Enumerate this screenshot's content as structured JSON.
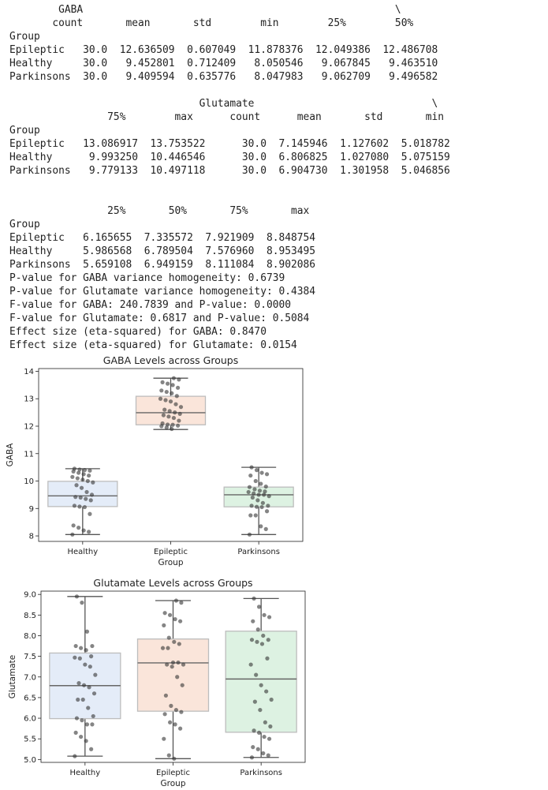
{
  "console": {
    "lines": [
      "        GABA                                                   \\",
      "       count       mean       std        min        25%        50%",
      "Group",
      "Epileptic   30.0  12.636509  0.607049  11.878376  12.049386  12.486708",
      "Healthy     30.0   9.452801  0.712409   8.050546   9.067845   9.463510",
      "Parkinsons  30.0   9.409594  0.635776   8.047983   9.062709   9.496582",
      "",
      "                               Glutamate                             \\",
      "                75%        max      count      mean       std       min",
      "Group",
      "Epileptic   13.086917  13.753522      30.0  7.145946  1.127602  5.018782",
      "Healthy      9.993250  10.446546      30.0  6.806825  1.027080  5.075159",
      "Parkinsons   9.779133  10.497118      30.0  6.904730  1.301958  5.046856",
      "",
      "",
      "                25%       50%       75%       max",
      "Group",
      "Epileptic   6.165655  7.335572  7.921909  8.848754",
      "Healthy     5.986568  6.789504  7.576960  8.953495",
      "Parkinsons  5.659108  6.949159  8.111084  8.902086",
      "P-value for GABA variance homogeneity: 0.6739",
      "P-value for Glutamate variance homogeneity: 0.4384",
      "F-value for GABA: 240.7839 and P-value: 0.0000",
      "F-value for Glutamate: 0.6817 and P-value: 0.5084",
      "Effect size (eta-squared) for GABA: 0.8470",
      "Effect size (eta-squared) for Glutamate: 0.0154"
    ]
  },
  "chart_data": [
    {
      "type": "box",
      "title": "GABA Levels across Groups",
      "xlabel": "Group",
      "ylabel": "GABA",
      "ylim": [
        7.8,
        14.1
      ],
      "yticks": [
        8,
        9,
        10,
        11,
        12,
        13,
        14
      ],
      "categories": [
        "Healthy",
        "Epileptic",
        "Parkinsons"
      ],
      "box_colors": [
        "#e4ecf8",
        "#fae5da",
        "#ddf2e2"
      ],
      "box_edge_color": "#bdbdbd",
      "point_color": "#333333",
      "boxes": [
        {
          "group": "Healthy",
          "min": 8.05,
          "q1": 9.07,
          "median": 9.46,
          "q3": 9.99,
          "max": 10.45
        },
        {
          "group": "Epileptic",
          "min": 11.88,
          "q1": 12.05,
          "median": 12.49,
          "q3": 13.09,
          "max": 13.75
        },
        {
          "group": "Parkinsons",
          "min": 8.05,
          "q1": 9.06,
          "median": 9.5,
          "q3": 9.78,
          "max": 10.5
        }
      ],
      "points": [
        [
          8.05,
          8.15,
          8.2,
          8.3,
          8.38,
          8.8,
          9.05,
          9.07,
          9.1,
          9.3,
          9.35,
          9.4,
          9.42,
          9.5,
          9.6,
          9.75,
          9.85,
          9.95,
          10.0,
          10.05,
          10.1,
          10.15,
          10.2,
          10.25,
          10.3,
          10.35,
          10.38,
          10.4,
          10.42,
          10.45
        ],
        [
          11.9,
          11.95,
          12.0,
          12.02,
          12.05,
          12.06,
          12.1,
          12.2,
          12.3,
          12.35,
          12.4,
          12.45,
          12.5,
          12.55,
          12.6,
          12.7,
          12.8,
          12.9,
          12.95,
          13.0,
          13.1,
          13.2,
          13.25,
          13.3,
          13.4,
          13.5,
          13.55,
          13.6,
          13.7,
          13.75
        ],
        [
          8.05,
          8.25,
          8.35,
          8.75,
          8.75,
          8.9,
          9.05,
          9.06,
          9.1,
          9.1,
          9.2,
          9.3,
          9.4,
          9.45,
          9.5,
          9.5,
          9.55,
          9.6,
          9.62,
          9.65,
          9.7,
          9.78,
          9.8,
          9.9,
          10.0,
          10.2,
          10.25,
          10.3,
          10.4,
          10.5
        ]
      ]
    },
    {
      "type": "box",
      "title": "Glutamate Levels across Groups",
      "xlabel": "Group",
      "ylabel": "Glutamate",
      "ylim": [
        4.93,
        9.08
      ],
      "yticks": [
        5.0,
        5.5,
        6.0,
        6.5,
        7.0,
        7.5,
        8.0,
        8.5,
        9.0
      ],
      "categories": [
        "Healthy",
        "Epileptic",
        "Parkinsons"
      ],
      "box_colors": [
        "#e4ecf8",
        "#fae5da",
        "#ddf2e2"
      ],
      "box_edge_color": "#bdbdbd",
      "point_color": "#333333",
      "boxes": [
        {
          "group": "Healthy",
          "min": 5.08,
          "q1": 5.99,
          "median": 6.79,
          "q3": 7.58,
          "max": 8.95
        },
        {
          "group": "Epileptic",
          "min": 5.02,
          "q1": 6.17,
          "median": 7.34,
          "q3": 7.92,
          "max": 8.85
        },
        {
          "group": "Parkinsons",
          "min": 5.05,
          "q1": 5.66,
          "median": 6.95,
          "q3": 8.11,
          "max": 8.9
        }
      ],
      "points": [
        [
          5.08,
          5.25,
          5.45,
          5.55,
          5.65,
          5.85,
          5.85,
          5.95,
          6.0,
          6.05,
          6.25,
          6.45,
          6.45,
          6.6,
          6.75,
          6.8,
          6.85,
          7.05,
          7.25,
          7.3,
          7.45,
          7.47,
          7.5,
          7.65,
          7.7,
          7.75,
          7.75,
          8.1,
          8.8,
          8.95
        ],
        [
          5.02,
          5.1,
          5.5,
          5.75,
          5.85,
          5.9,
          6.1,
          6.15,
          6.2,
          6.3,
          6.55,
          6.8,
          7.0,
          7.25,
          7.3,
          7.3,
          7.35,
          7.35,
          7.7,
          7.7,
          7.8,
          7.85,
          7.95,
          8.25,
          8.35,
          8.4,
          8.5,
          8.55,
          8.8,
          8.85
        ],
        [
          5.05,
          5.1,
          5.15,
          5.25,
          5.3,
          5.5,
          5.55,
          5.65,
          5.7,
          5.8,
          5.9,
          6.2,
          6.4,
          6.45,
          6.65,
          6.8,
          7.05,
          7.3,
          7.45,
          7.8,
          7.85,
          7.9,
          7.9,
          8.0,
          8.15,
          8.35,
          8.45,
          8.5,
          8.7,
          8.9
        ]
      ]
    }
  ]
}
